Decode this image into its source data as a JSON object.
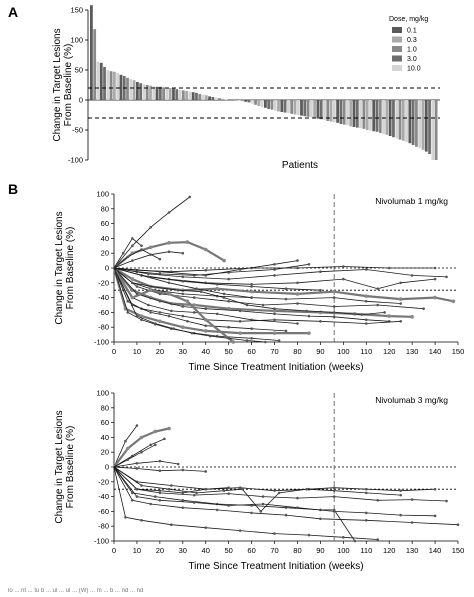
{
  "figure": {
    "panel_a_letter": "A",
    "panel_b_letter": "B",
    "caption_fragment": "lo ... nt ... tu b ... ul ... ul ... (W) ... m ... b ... nd ... nd"
  },
  "chart_data": [
    {
      "id": "waterfall",
      "type": "bar",
      "title": "",
      "xlabel": "Patients",
      "ylabel": "Change in Target Lesions From Baseline (%)",
      "ylim": [
        -100,
        150
      ],
      "yticks": [
        -100,
        -50,
        0,
        50,
        100,
        150
      ],
      "reference_lines": [
        20,
        -30
      ],
      "legend": {
        "title": "Dose, mg/kg",
        "placement": "top-right",
        "entries": [
          {
            "label": "0.1",
            "color": "#5a5a5a"
          },
          {
            "label": "0.3",
            "color": "#a9a9a9"
          },
          {
            "label": "1.0",
            "color": "#8a8a8a"
          },
          {
            "label": "3.0",
            "color": "#6e6e6e"
          },
          {
            "label": "10.0",
            "color": "#d4d4d4"
          }
        ]
      },
      "values": [
        158,
        118,
        64,
        62,
        55,
        50,
        48,
        47,
        45,
        42,
        40,
        37,
        35,
        33,
        30,
        28,
        26,
        25,
        24,
        23,
        22,
        22,
        21,
        20,
        20,
        19,
        18,
        17,
        16,
        15,
        14,
        13,
        12,
        10,
        9,
        8,
        6,
        5,
        4,
        3,
        2,
        1,
        0,
        0,
        0,
        -1,
        -2,
        -3,
        -4,
        -6,
        -8,
        -10,
        -12,
        -13,
        -15,
        -16,
        -18,
        -19,
        -20,
        -21,
        -22,
        -23,
        -24,
        -25,
        -26,
        -27,
        -28,
        -29,
        -30,
        -31,
        -32,
        -33,
        -35,
        -36,
        -37,
        -38,
        -40,
        -41,
        -42,
        -44,
        -45,
        -46,
        -47,
        -48,
        -50,
        -51,
        -52,
        -53,
        -55,
        -57,
        -58,
        -60,
        -62,
        -64,
        -66,
        -68,
        -70,
        -72,
        -75,
        -78,
        -80,
        -83,
        -86,
        -90,
        -100,
        -100
      ],
      "dose_index": [
        0,
        2,
        4,
        0,
        3,
        4,
        2,
        1,
        4,
        0,
        3,
        2,
        4,
        1,
        0,
        3,
        4,
        2,
        1,
        4,
        0,
        3,
        2,
        4,
        1,
        0,
        3,
        4,
        2,
        1,
        4,
        0,
        3,
        2,
        4,
        1,
        0,
        3,
        4,
        2,
        1,
        4,
        0,
        3,
        2,
        4,
        1,
        0,
        3,
        4,
        2,
        1,
        4,
        0,
        3,
        2,
        4,
        1,
        0,
        3,
        4,
        2,
        1,
        4,
        0,
        3,
        2,
        4,
        1,
        0,
        3,
        4,
        2,
        1,
        4,
        0,
        3,
        2,
        4,
        1,
        0,
        3,
        4,
        2,
        1,
        4,
        0,
        3,
        2,
        4,
        1,
        0,
        3,
        4,
        2,
        1,
        4,
        0,
        3,
        2,
        4,
        1,
        0,
        3,
        4,
        2
      ]
    },
    {
      "id": "spider-1mg",
      "type": "line",
      "title": "Nivolumab 1 mg/kg",
      "xlabel": "Time Since Treatment Initiation (weeks)",
      "ylabel": "Change in Target Lesions From Baseline (%)",
      "xlim": [
        0,
        150
      ],
      "ylim": [
        -100,
        100
      ],
      "xticks": [
        0,
        10,
        20,
        30,
        40,
        50,
        60,
        70,
        80,
        90,
        100,
        110,
        120,
        130,
        140,
        150
      ],
      "yticks": [
        -100,
        -80,
        -60,
        -40,
        -20,
        0,
        20,
        40,
        60,
        80,
        100
      ],
      "reference_lines_y": [
        0,
        -30
      ],
      "reference_line_x": 96,
      "series": [
        {
          "x": [
            0,
            8,
            16,
            24,
            33
          ],
          "y": [
            0,
            30,
            55,
            75,
            96
          ],
          "thick": false
        },
        {
          "x": [
            0,
            8,
            16,
            24,
            32,
            40,
            48
          ],
          "y": [
            0,
            20,
            28,
            34,
            35,
            25,
            10
          ],
          "thick": true
        },
        {
          "x": [
            0,
            4,
            8,
            12
          ],
          "y": [
            0,
            20,
            40,
            30
          ],
          "thick": false
        },
        {
          "x": [
            0,
            6,
            12,
            20
          ],
          "y": [
            0,
            15,
            25,
            12
          ],
          "thick": false
        },
        {
          "x": [
            0,
            8,
            16,
            24,
            30
          ],
          "y": [
            0,
            10,
            18,
            22,
            20
          ],
          "thick": false
        },
        {
          "x": [
            0,
            10,
            20,
            35,
            50,
            70,
            85
          ],
          "y": [
            0,
            -5,
            -8,
            -10,
            -6,
            -2,
            5
          ],
          "thick": false
        },
        {
          "x": [
            0,
            10,
            25,
            40,
            60,
            80,
            100,
            120,
            140
          ],
          "y": [
            0,
            -3,
            -5,
            -3,
            0,
            0,
            2,
            0,
            0
          ],
          "thick": false
        },
        {
          "x": [
            0,
            15,
            30,
            50,
            70,
            90,
            110,
            130,
            145
          ],
          "y": [
            0,
            -8,
            -12,
            -15,
            -10,
            -5,
            -2,
            -10,
            -12
          ],
          "thick": false
        },
        {
          "x": [
            0,
            12,
            24,
            40,
            60,
            80,
            100,
            115,
            125,
            140
          ],
          "y": [
            0,
            -10,
            -15,
            -20,
            -22,
            -20,
            -15,
            -28,
            -20,
            -15
          ],
          "thick": false
        },
        {
          "x": [
            0,
            8,
            16,
            30,
            45,
            60,
            80,
            96,
            110,
            125,
            140,
            148
          ],
          "y": [
            0,
            -15,
            -25,
            -30,
            -28,
            -32,
            -35,
            -32,
            -38,
            -42,
            -40,
            -45
          ],
          "thick": true
        },
        {
          "x": [
            0,
            8,
            18,
            30,
            45,
            60,
            75,
            96,
            110,
            125
          ],
          "y": [
            0,
            -20,
            -30,
            -35,
            -38,
            -40,
            -42,
            -40,
            -45,
            -48
          ],
          "thick": false
        },
        {
          "x": [
            0,
            10,
            20,
            35,
            50,
            65,
            80,
            96,
            115,
            135
          ],
          "y": [
            0,
            -25,
            -35,
            -40,
            -45,
            -50,
            -48,
            -52,
            -50,
            -55
          ],
          "thick": false
        },
        {
          "x": [
            0,
            8,
            16,
            25,
            35,
            50,
            70,
            90,
            105,
            120,
            130
          ],
          "y": [
            0,
            -30,
            -40,
            -48,
            -50,
            -55,
            -58,
            -60,
            -62,
            -65,
            -66
          ],
          "thick": true
        },
        {
          "x": [
            0,
            10,
            20,
            30,
            40,
            55,
            70,
            85,
            96,
            110,
            120
          ],
          "y": [
            0,
            -35,
            -45,
            -52,
            -55,
            -58,
            -62,
            -65,
            -66,
            -70,
            -72
          ],
          "thick": false
        },
        {
          "x": [
            0,
            8,
            15,
            25,
            35,
            45,
            60,
            80
          ],
          "y": [
            0,
            -40,
            -50,
            -58,
            -60,
            -62,
            -70,
            -75
          ],
          "thick": false
        },
        {
          "x": [
            0,
            6,
            12,
            20,
            30,
            40,
            55,
            70,
            90,
            110,
            125
          ],
          "y": [
            0,
            -45,
            -55,
            -60,
            -65,
            -70,
            -72,
            -70,
            -72,
            -75,
            -72
          ],
          "thick": false
        },
        {
          "x": [
            0,
            8,
            16,
            24,
            32,
            40,
            50,
            60,
            75
          ],
          "y": [
            0,
            -50,
            -60,
            -65,
            -72,
            -78,
            -80,
            -82,
            -85
          ],
          "thick": false
        },
        {
          "x": [
            0,
            5,
            12,
            20,
            30,
            40,
            55,
            70,
            85
          ],
          "y": [
            0,
            -55,
            -65,
            -72,
            -80,
            -85,
            -88,
            -88,
            -88
          ],
          "thick": true
        },
        {
          "x": [
            0,
            6,
            12,
            18,
            25,
            35,
            45,
            60,
            72
          ],
          "y": [
            0,
            -60,
            -70,
            -76,
            -82,
            -88,
            -92,
            -95,
            -98
          ],
          "thick": false
        },
        {
          "x": [
            0,
            8,
            16,
            24,
            32,
            40,
            52
          ],
          "y": [
            0,
            -40,
            -30,
            -35,
            -45,
            -70,
            -100
          ],
          "thick": true
        },
        {
          "x": [
            0,
            10,
            18,
            26,
            34,
            42,
            50,
            58,
            66
          ],
          "y": [
            0,
            -65,
            -75,
            -82,
            -88,
            -92,
            -95,
            -98,
            -100
          ],
          "thick": false
        },
        {
          "x": [
            0,
            8,
            18,
            28,
            38,
            48,
            58,
            70,
            84,
            96,
            108,
            118
          ],
          "y": [
            0,
            -20,
            -26,
            -30,
            -32,
            -40,
            -50,
            -55,
            -58,
            -60,
            -63,
            -60
          ],
          "thick": false
        },
        {
          "x": [
            0,
            12,
            24,
            36,
            48,
            60
          ],
          "y": [
            0,
            -10,
            -20,
            -28,
            -35,
            -40
          ],
          "thick": false
        },
        {
          "x": [
            0,
            15,
            30,
            45,
            60,
            75,
            90
          ],
          "y": [
            0,
            -12,
            -18,
            -22,
            -25,
            -28,
            -30
          ],
          "thick": false
        },
        {
          "x": [
            0,
            20,
            40,
            55,
            70,
            80
          ],
          "y": [
            0,
            -5,
            -10,
            -2,
            5,
            10
          ],
          "thick": false
        }
      ]
    },
    {
      "id": "spider-3mg",
      "type": "line",
      "title": "Nivolumab 3 mg/kg",
      "xlabel": "Time Since Treatment Initiation (weeks)",
      "ylabel": "Change in Target Lesions From Baseline (%)",
      "xlim": [
        0,
        150
      ],
      "ylim": [
        -100,
        100
      ],
      "xticks": [
        0,
        10,
        20,
        30,
        40,
        50,
        60,
        70,
        80,
        90,
        100,
        110,
        120,
        130,
        140,
        150
      ],
      "yticks": [
        -100,
        -80,
        -60,
        -40,
        -20,
        0,
        20,
        40,
        60,
        80,
        100
      ],
      "reference_lines_y": [
        0,
        -30
      ],
      "reference_line_x": 96,
      "series": [
        {
          "x": [
            0,
            5,
            10
          ],
          "y": [
            0,
            35,
            56
          ],
          "thick": false
        },
        {
          "x": [
            0,
            6,
            12,
            18,
            24
          ],
          "y": [
            0,
            25,
            40,
            48,
            52
          ],
          "thick": true
        },
        {
          "x": [
            0,
            8,
            16,
            22
          ],
          "y": [
            0,
            15,
            30,
            38
          ],
          "thick": false
        },
        {
          "x": [
            0,
            6,
            12,
            18
          ],
          "y": [
            0,
            10,
            20,
            30
          ],
          "thick": false
        },
        {
          "x": [
            0,
            10,
            20,
            30,
            40
          ],
          "y": [
            0,
            -2,
            -5,
            -4,
            -6
          ],
          "thick": false
        },
        {
          "x": [
            0,
            10,
            20,
            28
          ],
          "y": [
            0,
            5,
            8,
            4
          ],
          "thick": false
        },
        {
          "x": [
            0,
            10,
            25,
            40,
            55,
            70,
            85,
            96,
            110,
            125,
            140
          ],
          "y": [
            0,
            -20,
            -25,
            -30,
            -28,
            -32,
            -30,
            -28,
            -30,
            -32,
            -30
          ],
          "thick": false
        },
        {
          "x": [
            0,
            12,
            24,
            36,
            48,
            56,
            64,
            72,
            84,
            96,
            110,
            125
          ],
          "y": [
            0,
            -25,
            -30,
            -35,
            -32,
            -30,
            -60,
            -35,
            -30,
            -32,
            -35,
            -38
          ],
          "thick": false
        },
        {
          "x": [
            0,
            10,
            20,
            35,
            50,
            65,
            80,
            96,
            115,
            130,
            145
          ],
          "y": [
            0,
            -30,
            -35,
            -38,
            -36,
            -40,
            -42,
            -40,
            -45,
            -44,
            -46
          ],
          "thick": false
        },
        {
          "x": [
            0,
            8,
            18,
            30,
            45,
            60,
            75,
            90,
            96,
            105
          ],
          "y": [
            0,
            -35,
            -40,
            -45,
            -50,
            -52,
            -55,
            -58,
            -58,
            -100
          ],
          "thick": false
        },
        {
          "x": [
            0,
            10,
            20,
            35,
            50,
            65,
            80,
            96,
            110,
            125,
            140
          ],
          "y": [
            0,
            -40,
            -45,
            -48,
            -52,
            -50,
            -55,
            -60,
            -62,
            -65,
            -66
          ],
          "thick": false
        },
        {
          "x": [
            0,
            8,
            16,
            30,
            45,
            60,
            75,
            90,
            110,
            130,
            150
          ],
          "y": [
            0,
            -45,
            -50,
            -55,
            -58,
            -62,
            -65,
            -70,
            -72,
            -75,
            -78
          ],
          "thick": false
        },
        {
          "x": [
            0,
            5,
            12,
            25,
            40,
            55,
            70,
            85,
            100,
            115
          ],
          "y": [
            0,
            -68,
            -72,
            -78,
            -82,
            -86,
            -90,
            -92,
            -95,
            -98
          ],
          "thick": false
        },
        {
          "x": [
            0,
            10,
            20,
            30,
            40,
            50
          ],
          "y": [
            0,
            -30,
            -32,
            -35,
            -30,
            -28
          ],
          "thick": false
        }
      ]
    }
  ]
}
